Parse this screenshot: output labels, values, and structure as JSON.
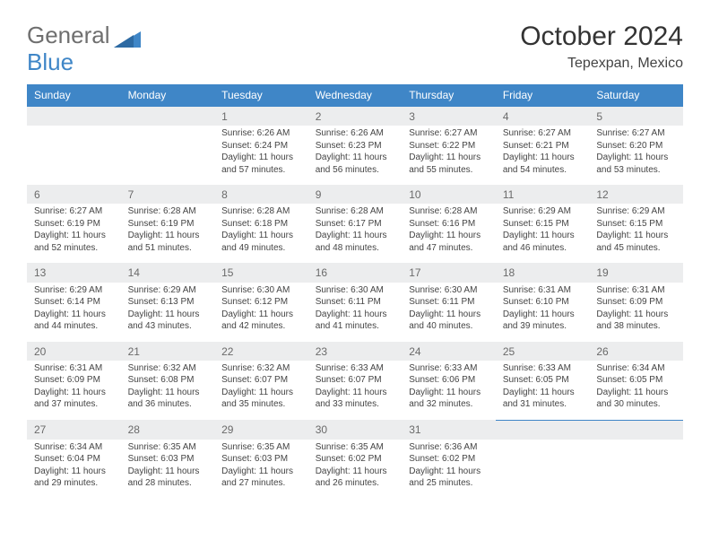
{
  "logo": {
    "text1": "General",
    "text2": "Blue"
  },
  "title": "October 2024",
  "subtitle": "Tepexpan, Mexico",
  "colors": {
    "header_bg": "#3f86c7",
    "header_text": "#ffffff",
    "daynum_bg": "#ecedee",
    "border_top": "#3f86c7",
    "text": "#444444",
    "logo_gray": "#6f6f6f",
    "logo_blue": "#3f86c7"
  },
  "weekdays": [
    "Sunday",
    "Monday",
    "Tuesday",
    "Wednesday",
    "Thursday",
    "Friday",
    "Saturday"
  ],
  "weeks": [
    [
      null,
      null,
      {
        "n": "1",
        "sr": "Sunrise: 6:26 AM",
        "ss": "Sunset: 6:24 PM",
        "d1": "Daylight: 11 hours",
        "d2": "and 57 minutes."
      },
      {
        "n": "2",
        "sr": "Sunrise: 6:26 AM",
        "ss": "Sunset: 6:23 PM",
        "d1": "Daylight: 11 hours",
        "d2": "and 56 minutes."
      },
      {
        "n": "3",
        "sr": "Sunrise: 6:27 AM",
        "ss": "Sunset: 6:22 PM",
        "d1": "Daylight: 11 hours",
        "d2": "and 55 minutes."
      },
      {
        "n": "4",
        "sr": "Sunrise: 6:27 AM",
        "ss": "Sunset: 6:21 PM",
        "d1": "Daylight: 11 hours",
        "d2": "and 54 minutes."
      },
      {
        "n": "5",
        "sr": "Sunrise: 6:27 AM",
        "ss": "Sunset: 6:20 PM",
        "d1": "Daylight: 11 hours",
        "d2": "and 53 minutes."
      }
    ],
    [
      {
        "n": "6",
        "sr": "Sunrise: 6:27 AM",
        "ss": "Sunset: 6:19 PM",
        "d1": "Daylight: 11 hours",
        "d2": "and 52 minutes."
      },
      {
        "n": "7",
        "sr": "Sunrise: 6:28 AM",
        "ss": "Sunset: 6:19 PM",
        "d1": "Daylight: 11 hours",
        "d2": "and 51 minutes."
      },
      {
        "n": "8",
        "sr": "Sunrise: 6:28 AM",
        "ss": "Sunset: 6:18 PM",
        "d1": "Daylight: 11 hours",
        "d2": "and 49 minutes."
      },
      {
        "n": "9",
        "sr": "Sunrise: 6:28 AM",
        "ss": "Sunset: 6:17 PM",
        "d1": "Daylight: 11 hours",
        "d2": "and 48 minutes."
      },
      {
        "n": "10",
        "sr": "Sunrise: 6:28 AM",
        "ss": "Sunset: 6:16 PM",
        "d1": "Daylight: 11 hours",
        "d2": "and 47 minutes."
      },
      {
        "n": "11",
        "sr": "Sunrise: 6:29 AM",
        "ss": "Sunset: 6:15 PM",
        "d1": "Daylight: 11 hours",
        "d2": "and 46 minutes."
      },
      {
        "n": "12",
        "sr": "Sunrise: 6:29 AM",
        "ss": "Sunset: 6:15 PM",
        "d1": "Daylight: 11 hours",
        "d2": "and 45 minutes."
      }
    ],
    [
      {
        "n": "13",
        "sr": "Sunrise: 6:29 AM",
        "ss": "Sunset: 6:14 PM",
        "d1": "Daylight: 11 hours",
        "d2": "and 44 minutes."
      },
      {
        "n": "14",
        "sr": "Sunrise: 6:29 AM",
        "ss": "Sunset: 6:13 PM",
        "d1": "Daylight: 11 hours",
        "d2": "and 43 minutes."
      },
      {
        "n": "15",
        "sr": "Sunrise: 6:30 AM",
        "ss": "Sunset: 6:12 PM",
        "d1": "Daylight: 11 hours",
        "d2": "and 42 minutes."
      },
      {
        "n": "16",
        "sr": "Sunrise: 6:30 AM",
        "ss": "Sunset: 6:11 PM",
        "d1": "Daylight: 11 hours",
        "d2": "and 41 minutes."
      },
      {
        "n": "17",
        "sr": "Sunrise: 6:30 AM",
        "ss": "Sunset: 6:11 PM",
        "d1": "Daylight: 11 hours",
        "d2": "and 40 minutes."
      },
      {
        "n": "18",
        "sr": "Sunrise: 6:31 AM",
        "ss": "Sunset: 6:10 PM",
        "d1": "Daylight: 11 hours",
        "d2": "and 39 minutes."
      },
      {
        "n": "19",
        "sr": "Sunrise: 6:31 AM",
        "ss": "Sunset: 6:09 PM",
        "d1": "Daylight: 11 hours",
        "d2": "and 38 minutes."
      }
    ],
    [
      {
        "n": "20",
        "sr": "Sunrise: 6:31 AM",
        "ss": "Sunset: 6:09 PM",
        "d1": "Daylight: 11 hours",
        "d2": "and 37 minutes."
      },
      {
        "n": "21",
        "sr": "Sunrise: 6:32 AM",
        "ss": "Sunset: 6:08 PM",
        "d1": "Daylight: 11 hours",
        "d2": "and 36 minutes."
      },
      {
        "n": "22",
        "sr": "Sunrise: 6:32 AM",
        "ss": "Sunset: 6:07 PM",
        "d1": "Daylight: 11 hours",
        "d2": "and 35 minutes."
      },
      {
        "n": "23",
        "sr": "Sunrise: 6:33 AM",
        "ss": "Sunset: 6:07 PM",
        "d1": "Daylight: 11 hours",
        "d2": "and 33 minutes."
      },
      {
        "n": "24",
        "sr": "Sunrise: 6:33 AM",
        "ss": "Sunset: 6:06 PM",
        "d1": "Daylight: 11 hours",
        "d2": "and 32 minutes."
      },
      {
        "n": "25",
        "sr": "Sunrise: 6:33 AM",
        "ss": "Sunset: 6:05 PM",
        "d1": "Daylight: 11 hours",
        "d2": "and 31 minutes."
      },
      {
        "n": "26",
        "sr": "Sunrise: 6:34 AM",
        "ss": "Sunset: 6:05 PM",
        "d1": "Daylight: 11 hours",
        "d2": "and 30 minutes."
      }
    ],
    [
      {
        "n": "27",
        "sr": "Sunrise: 6:34 AM",
        "ss": "Sunset: 6:04 PM",
        "d1": "Daylight: 11 hours",
        "d2": "and 29 minutes."
      },
      {
        "n": "28",
        "sr": "Sunrise: 6:35 AM",
        "ss": "Sunset: 6:03 PM",
        "d1": "Daylight: 11 hours",
        "d2": "and 28 minutes."
      },
      {
        "n": "29",
        "sr": "Sunrise: 6:35 AM",
        "ss": "Sunset: 6:03 PM",
        "d1": "Daylight: 11 hours",
        "d2": "and 27 minutes."
      },
      {
        "n": "30",
        "sr": "Sunrise: 6:35 AM",
        "ss": "Sunset: 6:02 PM",
        "d1": "Daylight: 11 hours",
        "d2": "and 26 minutes."
      },
      {
        "n": "31",
        "sr": "Sunrise: 6:36 AM",
        "ss": "Sunset: 6:02 PM",
        "d1": "Daylight: 11 hours",
        "d2": "and 25 minutes."
      },
      null,
      null
    ]
  ]
}
